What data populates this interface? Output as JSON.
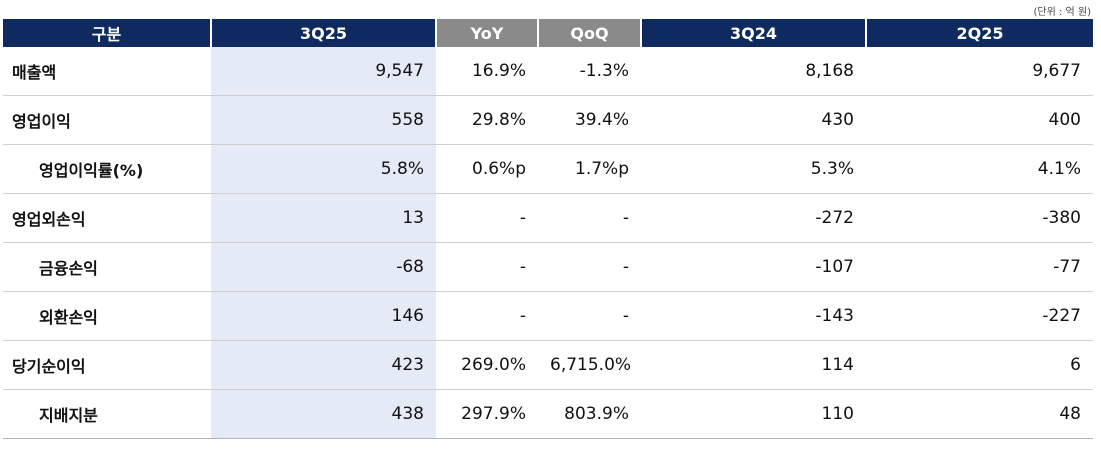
{
  "unit_note": "(단위 : 억 원)",
  "table": {
    "header": [
      "구분",
      "3Q25",
      "YoY",
      "QoQ",
      "3Q24",
      "2Q25"
    ],
    "rows": [
      [
        "매출액",
        "9,547",
        "16.9%",
        "-1.3%",
        "8,168",
        "9,677"
      ],
      [
        "영업이익",
        "558",
        "29.8%",
        "39.4%",
        "430",
        "400"
      ],
      [
        "영업이익률(%)",
        "5.8%",
        "0.6%p",
        "1.7%p",
        "5.3%",
        "4.1%"
      ],
      [
        "영업외손익",
        "13",
        "-",
        "-",
        "-272",
        "-380"
      ],
      [
        "금융손익",
        "-68",
        "-",
        "-",
        "-107",
        "-77"
      ],
      [
        "외환손익",
        "146",
        "-",
        "-",
        "-143",
        "-227"
      ],
      [
        "당기순이익",
        "423",
        "269.0%",
        "6,715.0%",
        "114",
        "6"
      ],
      [
        "지배지분",
        "438",
        "297.9%",
        "803.9%",
        "110",
        "48"
      ]
    ]
  }
}
